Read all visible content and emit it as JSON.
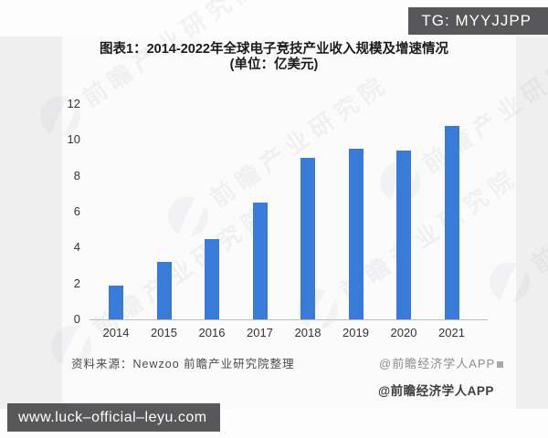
{
  "overlays": {
    "tg_badge": "TG: MYYJJPP",
    "url_bar": "www.luck–official–leyu.com"
  },
  "chart_data": {
    "type": "bar",
    "title": "图表1：2014-2022年全球电子竞技产业收入规模及增速情况",
    "subtitle": "(单位：亿美元)",
    "categories": [
      "2014",
      "2015",
      "2016",
      "2017",
      "2018",
      "2019",
      "2020",
      "2021"
    ],
    "values": [
      1.9,
      3.2,
      4.5,
      6.5,
      9.0,
      9.5,
      9.4,
      10.8
    ],
    "xlabel": "",
    "ylabel": "",
    "ylim": [
      0,
      12
    ],
    "yticks": [
      0,
      2,
      4,
      6,
      8,
      10,
      12
    ],
    "grid": false,
    "legend_position": "none",
    "bar_color": "#3a7bd8"
  },
  "footer": {
    "source": "资料来源：Newzoo 前瞻产业研究院整理",
    "watermark_credit": "@前瞻经济学人APP",
    "app_credit": "@前瞻经济学人APP"
  },
  "watermark": {
    "brand": "前瞻产业研究院"
  }
}
